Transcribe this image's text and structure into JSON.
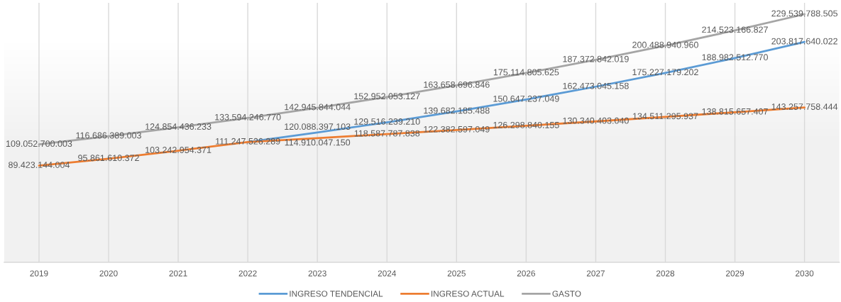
{
  "chart_data": {
    "type": "line",
    "categories": [
      "2019",
      "2020",
      "2021",
      "2022",
      "2023",
      "2024",
      "2025",
      "2026",
      "2027",
      "2028",
      "2029",
      "2030"
    ],
    "series": [
      {
        "name": "INGRESO TENDENCIAL",
        "color": "#5b9bd5",
        "values": [
          null,
          null,
          null,
          111247526289,
          120088397103,
          129516239210,
          139682185488,
          150647237049,
          162473045158,
          175227179202,
          188982512770,
          203817640022
        ],
        "value_labels": [
          null,
          null,
          null,
          null,
          "120.088.397.103",
          "129.516.239.210",
          "139.682.185.488",
          "150.647.237.049",
          "162.473.045.158",
          "175.227.179.202",
          "188.982.512.770",
          "203.817.640.022"
        ]
      },
      {
        "name": "INGRESO ACTUAL",
        "color": "#ed7d31",
        "values": [
          89423144004,
          95861610372,
          103242954371,
          111247526289,
          114910047150,
          118587787838,
          122382597049,
          126298840155,
          130340403040,
          134511295937,
          138815657407,
          143257758444
        ],
        "value_labels": [
          "89.423.144.004",
          "95.861.610.372",
          "103.242.954.371",
          "111.247.526.289",
          "114.910.047.150",
          "118.587.787.838",
          "122.382.597.049",
          "126.298.840.155",
          "130.340.403.040",
          "134.511.295.937",
          "138.815.657.407",
          "143.257.758.444"
        ]
      },
      {
        "name": "GASTO",
        "color": "#a5a5a5",
        "values": [
          109052700003,
          116686389003,
          124854436233,
          133594246770,
          142945844044,
          152952053127,
          163658696846,
          175114805625,
          187372842019,
          200488940960,
          214523166827,
          229539788505
        ],
        "value_labels": [
          "109.052.700.003",
          "116.686.389.003",
          "124.854.436.233",
          "133.594.246.770",
          "142.945.844.044",
          "152.952.053.127",
          "163.658.696.846",
          "175.114.805.625",
          "187.372.842.019",
          "200.488.940.960",
          "214.523.166.827",
          "229.539.788.505"
        ]
      }
    ],
    "ylim": [
      0,
      240000000000
    ],
    "tick_labels": "x",
    "grid": "x",
    "legend": "bottom",
    "marker": "none",
    "line_style": "solid"
  }
}
